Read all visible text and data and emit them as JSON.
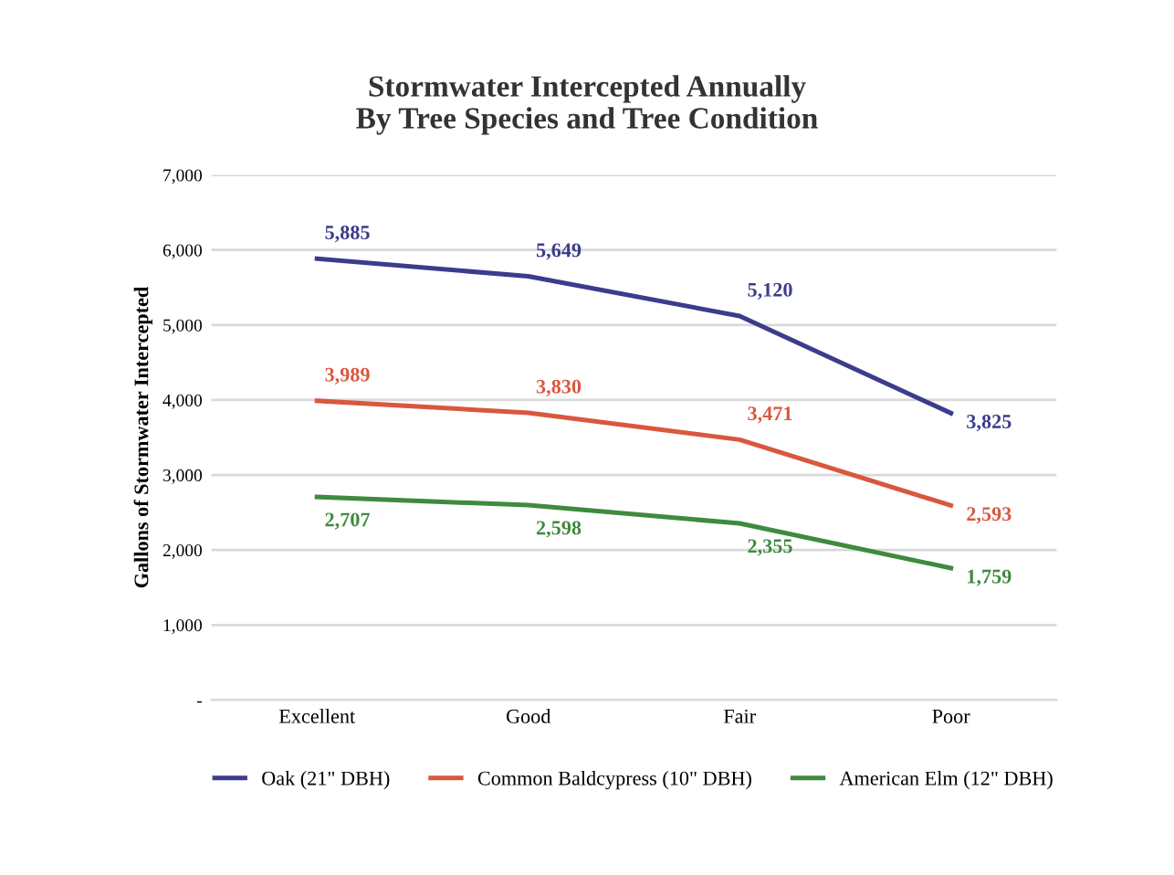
{
  "chart_data": {
    "type": "line",
    "title": "Stormwater Intercepted Annually\nBy Tree Species and Tree Condition",
    "ylabel": "Gallons of Stormwater Intercepted",
    "categories": [
      "Excellent",
      "Good",
      "Fair",
      "Poor"
    ],
    "series": [
      {
        "name": "Oak (21\" DBH)",
        "color": "#3c3c8c",
        "values": [
          5885,
          5649,
          5120,
          3825
        ],
        "value_labels": [
          "5,885",
          "5,649",
          "5,120",
          "3,825"
        ]
      },
      {
        "name": "Common Baldcypress (10\" DBH)",
        "color": "#d9573e",
        "values": [
          3989,
          3830,
          3471,
          2593
        ],
        "value_labels": [
          "3,989",
          "3,830",
          "3,471",
          "2,593"
        ]
      },
      {
        "name": "American Elm (12\" DBH)",
        "color": "#3f8a3f",
        "values": [
          2707,
          2598,
          2355,
          1759
        ],
        "value_labels": [
          "2,707",
          "2,598",
          "2,355",
          "1,759"
        ]
      }
    ],
    "ylim": [
      0,
      7000
    ],
    "yticks": [
      {
        "value": 0,
        "label": "-"
      },
      {
        "value": 1000,
        "label": "1,000"
      },
      {
        "value": 2000,
        "label": "2,000"
      },
      {
        "value": 3000,
        "label": "3,000"
      },
      {
        "value": 4000,
        "label": "4,000"
      },
      {
        "value": 5000,
        "label": "5,000"
      },
      {
        "value": 6000,
        "label": "6,000"
      },
      {
        "value": 7000,
        "label": "7,000"
      }
    ],
    "grid": "y",
    "legend": "bottom",
    "marker": "none",
    "line_style": "solid"
  }
}
